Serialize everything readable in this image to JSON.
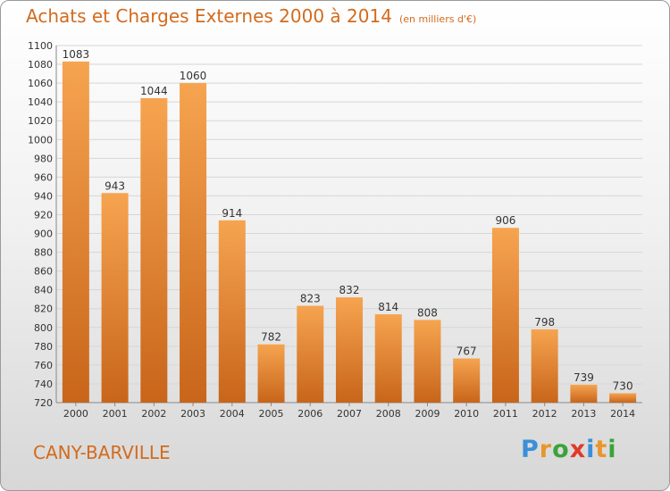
{
  "header": {
    "title": "Achats et Charges Externes 2000 à 2014",
    "unit": "(en milliers d'€)"
  },
  "footer": {
    "place": "CANY-BARVILLE",
    "logo_letters": [
      "P",
      "r",
      "o",
      "x",
      "i",
      "t",
      "i"
    ],
    "logo_colors": [
      "#3a8fd8",
      "#e8962a",
      "#3aa33a",
      "#e03a2a",
      "#3a8fd8",
      "#e8962a",
      "#3aa33a"
    ]
  },
  "chart_data": {
    "type": "bar",
    "title": "Achats et Charges Externes 2000 à 2014",
    "subtitle": "(en milliers d'€)",
    "categories": [
      "2000",
      "2001",
      "2002",
      "2003",
      "2004",
      "2005",
      "2006",
      "2007",
      "2008",
      "2009",
      "2010",
      "2011",
      "2012",
      "2013",
      "2014"
    ],
    "values": [
      1083,
      943,
      1044,
      1060,
      914,
      782,
      823,
      832,
      814,
      808,
      767,
      906,
      798,
      739,
      730
    ],
    "ylim": [
      720,
      1100
    ],
    "yticks": [
      720,
      740,
      760,
      780,
      800,
      820,
      840,
      860,
      880,
      900,
      920,
      940,
      960,
      980,
      1000,
      1020,
      1040,
      1060,
      1080,
      1100
    ],
    "grid": true,
    "bar_color_top": "#f6a450",
    "bar_color_bottom": "#c8651a"
  }
}
